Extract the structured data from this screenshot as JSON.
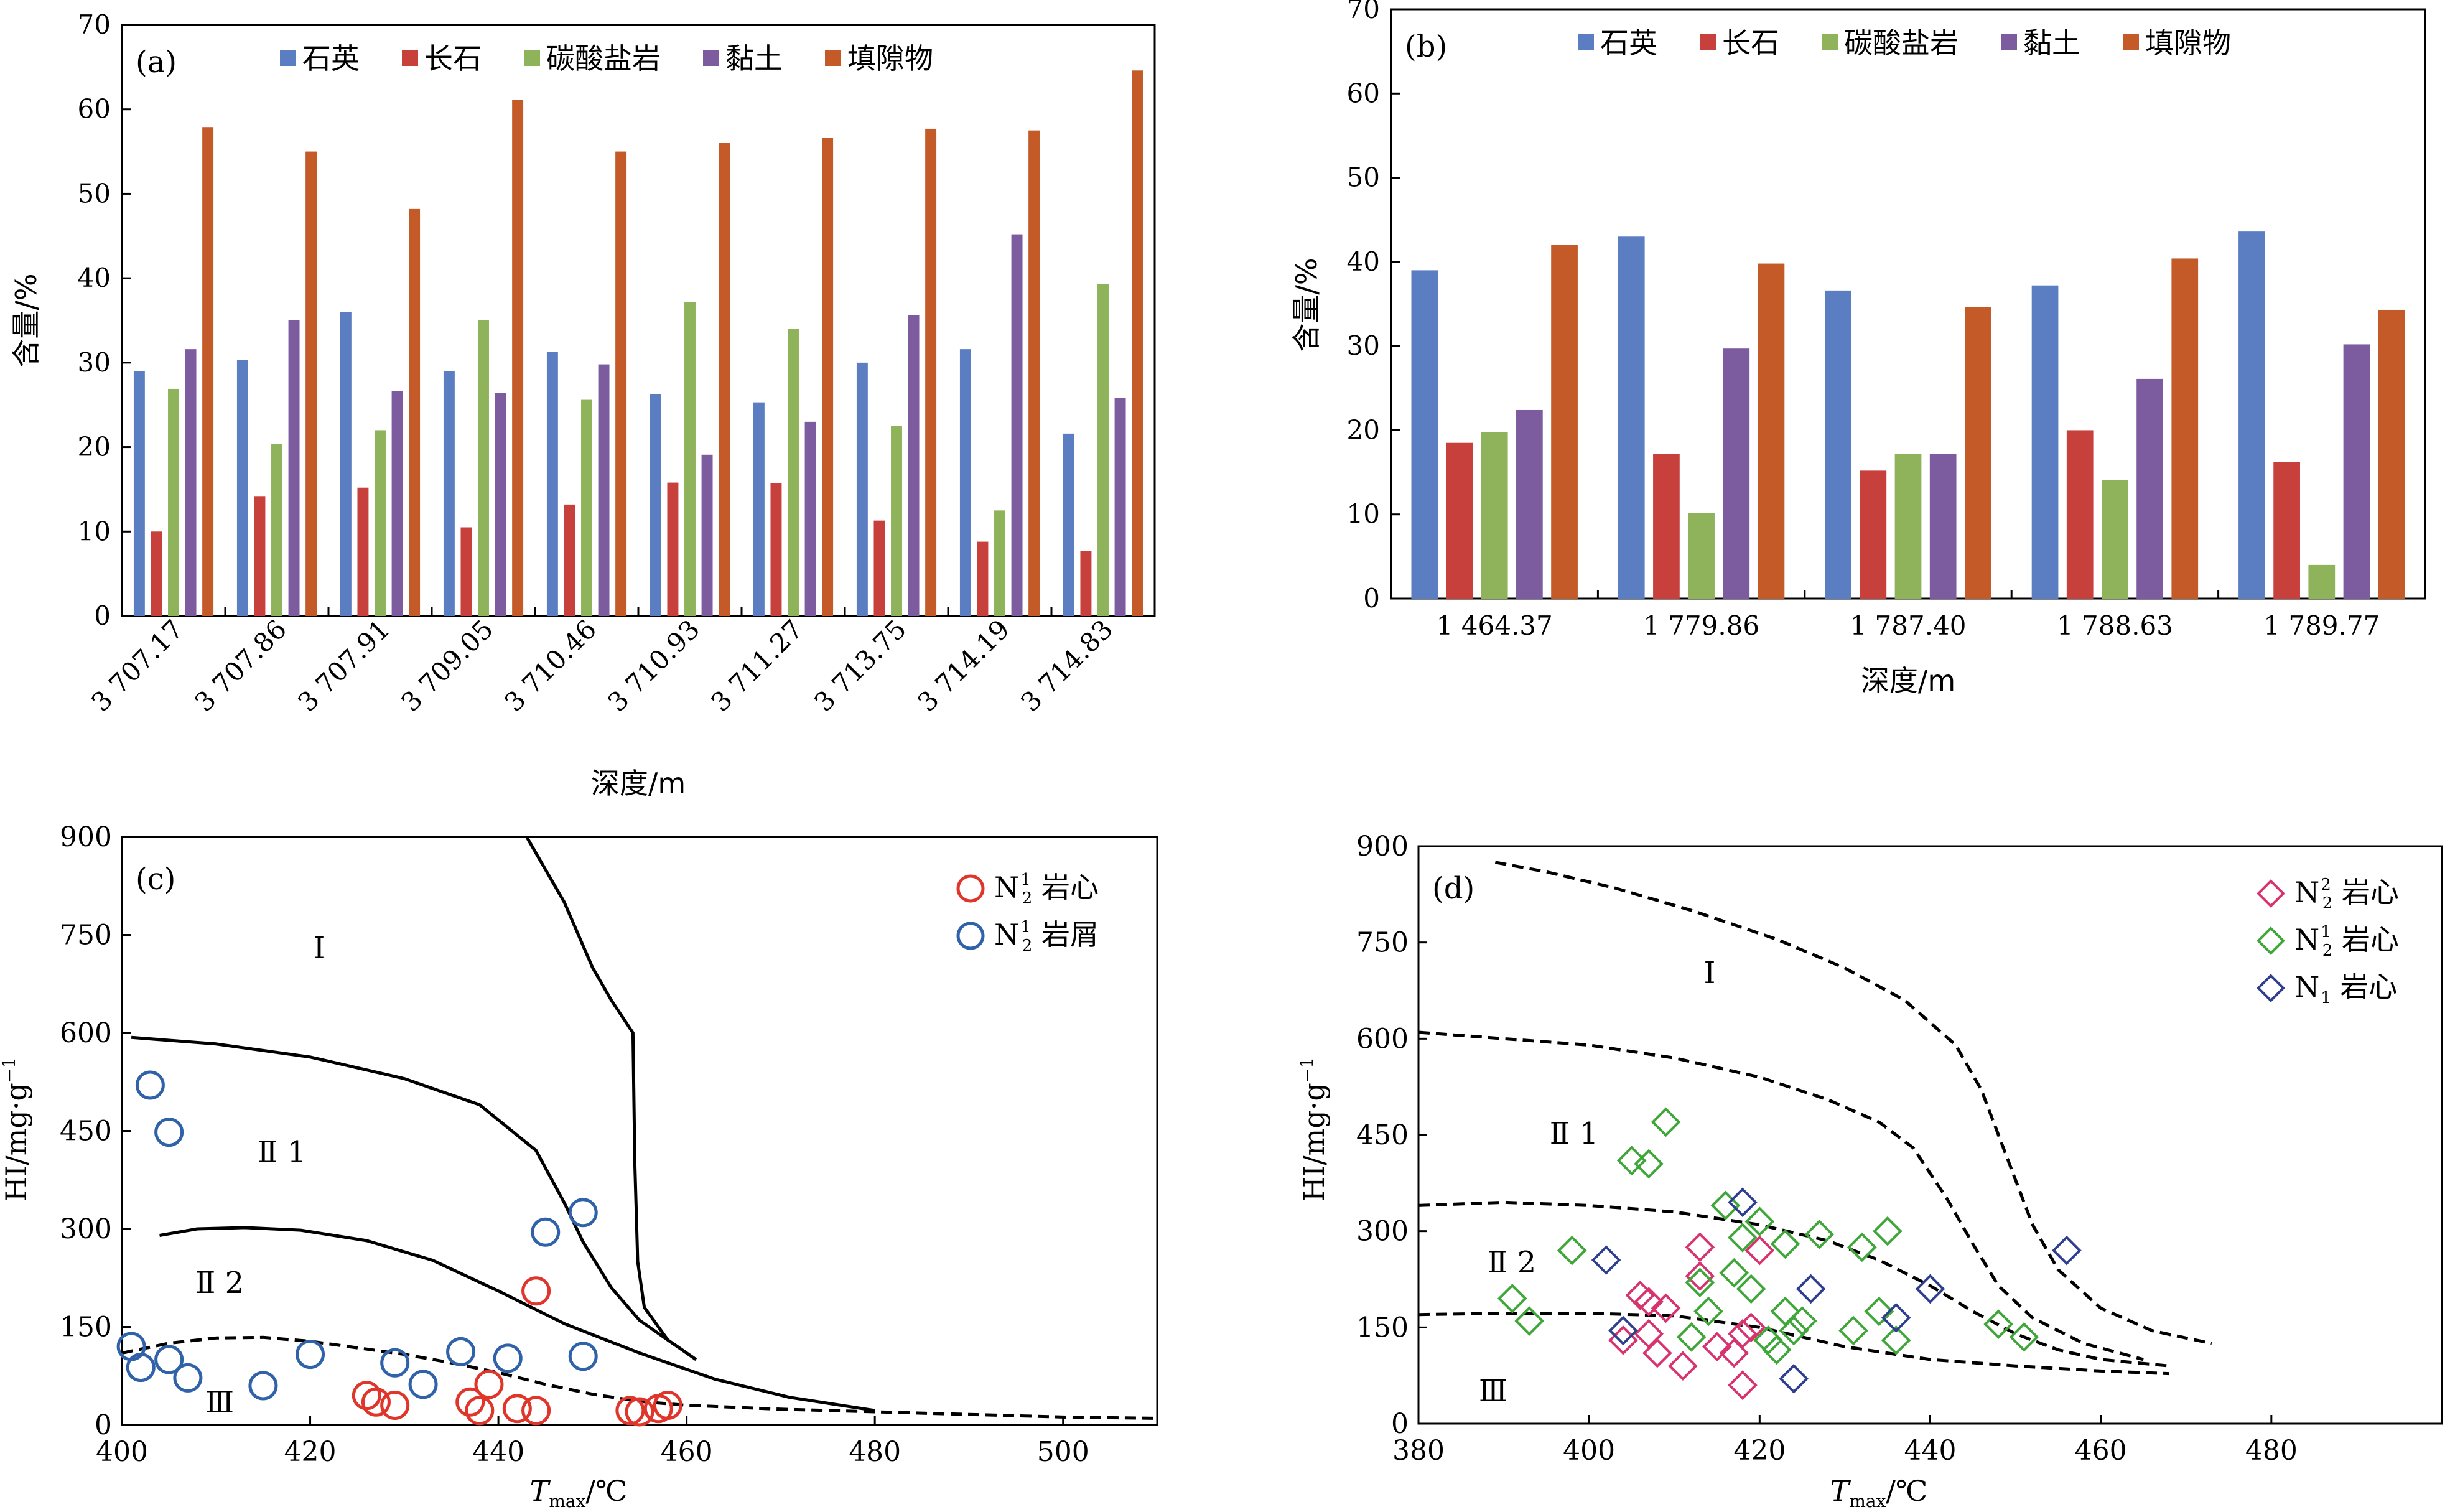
{
  "chart_data": [
    {
      "panel": "(a)",
      "type": "bar",
      "xlabel": "深度/m",
      "ylabel": "含量/%",
      "ylim": [
        0,
        70
      ],
      "yticks": [
        0,
        10,
        20,
        30,
        40,
        50,
        60,
        70
      ],
      "categories": [
        "3 707.17",
        "3 707.86",
        "3 707.91",
        "3 709.05",
        "3 710.46",
        "3 710.93",
        "3 711.27",
        "3 713.75",
        "3 714.19",
        "3 714.83"
      ],
      "series": [
        {
          "name": "石英",
          "color": "#5b7ec2",
          "values": [
            29.0,
            30.3,
            36.0,
            29.0,
            31.3,
            26.3,
            25.3,
            30.0,
            31.6,
            21.6
          ]
        },
        {
          "name": "长石",
          "color": "#c8403c",
          "values": [
            10.0,
            14.2,
            15.2,
            10.5,
            13.2,
            15.8,
            15.7,
            11.3,
            8.8,
            7.7
          ]
        },
        {
          "name": "碳酸盐岩",
          "color": "#8fb35a",
          "values": [
            26.9,
            20.4,
            22.0,
            35.0,
            25.6,
            37.2,
            34.0,
            22.5,
            12.5,
            39.3
          ]
        },
        {
          "name": "黏土",
          "color": "#7c5c9f",
          "values": [
            31.6,
            35.0,
            26.6,
            26.4,
            29.8,
            19.1,
            23.0,
            35.6,
            45.2,
            25.8
          ]
        },
        {
          "name": "填隙物",
          "color": "#c45a28",
          "values": [
            57.9,
            55.0,
            48.2,
            61.1,
            55.0,
            56.0,
            56.6,
            57.7,
            57.5,
            64.6
          ]
        }
      ],
      "legend_position": "top"
    },
    {
      "panel": "(b)",
      "type": "bar",
      "xlabel": "深度/m",
      "ylabel": "含量/%",
      "ylim": [
        0,
        70
      ],
      "yticks": [
        0,
        10,
        20,
        30,
        40,
        50,
        60,
        70
      ],
      "categories": [
        "1 464.37",
        "1 779.86",
        "1 787.40",
        "1 788.63",
        "1 789.77"
      ],
      "series": [
        {
          "name": "石英",
          "color": "#5b7ec2",
          "values": [
            39.0,
            43.0,
            36.6,
            37.2,
            43.6
          ]
        },
        {
          "name": "长石",
          "color": "#c8403c",
          "values": [
            18.5,
            17.2,
            15.2,
            20.0,
            16.2
          ]
        },
        {
          "name": "碳酸盐岩",
          "color": "#8fb35a",
          "values": [
            19.8,
            10.2,
            17.2,
            14.1,
            4.0
          ]
        },
        {
          "name": "黏土",
          "color": "#7c5c9f",
          "values": [
            22.4,
            29.7,
            17.2,
            26.1,
            30.2
          ]
        },
        {
          "name": "填隙物",
          "color": "#c45a28",
          "values": [
            42.0,
            39.8,
            34.6,
            40.4,
            34.3
          ]
        }
      ],
      "legend_position": "top"
    },
    {
      "panel": "(c)",
      "type": "scatter",
      "xlabel_italic": "T",
      "xlabel_sub": "max",
      "xlabel_rest": "/℃",
      "ylabel": "HI/mg·g",
      "ylabel_sup": "−1",
      "xlim": [
        400,
        510
      ],
      "ylim": [
        0,
        900
      ],
      "xticks": [
        400,
        420,
        440,
        460,
        480,
        500
      ],
      "yticks": [
        0,
        150,
        300,
        450,
        600,
        750,
        900
      ],
      "zone_labels": [
        "Ⅰ",
        "Ⅱ 1",
        "Ⅱ 2",
        "Ⅲ"
      ],
      "series": [
        {
          "name": "岩心",
          "prefix": "N",
          "sub": "2",
          "sup": "1",
          "color": "#e0352b",
          "points": [
            [
              426,
              45
            ],
            [
              427,
              35
            ],
            [
              429,
              30
            ],
            [
              437,
              35
            ],
            [
              438,
              22
            ],
            [
              439,
              62
            ],
            [
              442,
              25
            ],
            [
              444,
              205
            ],
            [
              444,
              22
            ],
            [
              454,
              22
            ],
            [
              455,
              20
            ],
            [
              457,
              25
            ],
            [
              458,
              30
            ]
          ]
        },
        {
          "name": "岩屑",
          "prefix": "N",
          "sub": "2",
          "sup": "1",
          "color": "#2f62a8",
          "points": [
            [
              401,
              120
            ],
            [
              402,
              88
            ],
            [
              403,
              520
            ],
            [
              405,
              448
            ],
            [
              405,
              100
            ],
            [
              407,
              72
            ],
            [
              415,
              60
            ],
            [
              420,
              108
            ],
            [
              429,
              95
            ],
            [
              432,
              62
            ],
            [
              436,
              112
            ],
            [
              441,
              102
            ],
            [
              445,
              295
            ],
            [
              449,
              325
            ],
            [
              449,
              105
            ]
          ]
        }
      ],
      "boundaries": [
        {
          "style": "solid",
          "points": [
            [
              443,
              900
            ],
            [
              447,
              800
            ],
            [
              450,
              700
            ],
            [
              452,
              650
            ],
            [
              454.3,
              600
            ],
            [
              454.5,
              400
            ],
            [
              454.8,
              250
            ],
            [
              455.5,
              180
            ],
            [
              458,
              130
            ],
            [
              461,
              100
            ]
          ]
        },
        {
          "style": "solid",
          "points": [
            [
              401,
              593
            ],
            [
              410,
              583
            ],
            [
              420,
              563
            ],
            [
              430,
              530
            ],
            [
              438,
              490
            ],
            [
              444,
              420
            ],
            [
              447,
              340
            ],
            [
              449,
              280
            ],
            [
              452,
              210
            ],
            [
              455,
              160
            ],
            [
              458,
              130
            ],
            [
              461,
              100
            ]
          ]
        },
        {
          "style": "solid",
          "points": [
            [
              404,
              290
            ],
            [
              408,
              300
            ],
            [
              413,
              302
            ],
            [
              419,
              298
            ],
            [
              426,
              282
            ],
            [
              433,
              252
            ],
            [
              440,
              205
            ],
            [
              447,
              155
            ],
            [
              455,
              110
            ],
            [
              463,
              70
            ],
            [
              471,
              42
            ],
            [
              480,
              22
            ]
          ]
        },
        {
          "style": "dashed",
          "points": [
            [
              400,
              110
            ],
            [
              405,
              125
            ],
            [
              410,
              133
            ],
            [
              415,
              134
            ],
            [
              420,
              128
            ],
            [
              425,
              118
            ],
            [
              430,
              108
            ],
            [
              435,
              95
            ],
            [
              440,
              80
            ],
            [
              445,
              62
            ],
            [
              450,
              47
            ],
            [
              455,
              36
            ],
            [
              460,
              30
            ],
            [
              470,
              24
            ],
            [
              480,
              20
            ],
            [
              490,
              16
            ],
            [
              500,
              12
            ],
            [
              510,
              10
            ]
          ]
        }
      ],
      "legend_position": "top-right"
    },
    {
      "panel": "(d)",
      "type": "scatter",
      "xlabel_italic": "T",
      "xlabel_sub": "max",
      "xlabel_rest": "/℃",
      "ylabel": "HI/mg·g",
      "ylabel_sup": "−1",
      "xlim": [
        380,
        500
      ],
      "ylim": [
        0,
        900
      ],
      "xticks": [
        380,
        400,
        420,
        440,
        460,
        480
      ],
      "yticks": [
        0,
        150,
        300,
        450,
        600,
        750,
        900
      ],
      "zone_labels": [
        "Ⅰ",
        "Ⅱ 1",
        "Ⅱ 2",
        "Ⅲ"
      ],
      "series": [
        {
          "name": "岩心",
          "prefix": "N",
          "sub": "2",
          "sup": "2",
          "color": "#d6336f",
          "points": [
            [
              404,
              130
            ],
            [
              406,
              200
            ],
            [
              407,
              190
            ],
            [
              407,
              140
            ],
            [
              408,
              110
            ],
            [
              409,
              180
            ],
            [
              411,
              90
            ],
            [
              413,
              275
            ],
            [
              413,
              230
            ],
            [
              415,
              120
            ],
            [
              417,
              110
            ],
            [
              418,
              140
            ],
            [
              418,
              60
            ],
            [
              419,
              150
            ],
            [
              420,
              270
            ]
          ]
        },
        {
          "name": "岩心",
          "prefix": "N",
          "sub": "2",
          "sup": "1",
          "color": "#3fa63a",
          "points": [
            [
              391,
              195
            ],
            [
              393,
              160
            ],
            [
              398,
              270
            ],
            [
              405,
              410
            ],
            [
              407,
              405
            ],
            [
              409,
              470
            ],
            [
              412,
              135
            ],
            [
              413,
              220
            ],
            [
              414,
              175
            ],
            [
              416,
              340
            ],
            [
              417,
              235
            ],
            [
              418,
              290
            ],
            [
              419,
              210
            ],
            [
              420,
              315
            ],
            [
              421,
              130
            ],
            [
              422,
              115
            ],
            [
              423,
              280
            ],
            [
              423,
              175
            ],
            [
              424,
              145
            ],
            [
              425,
              160
            ],
            [
              427,
              295
            ],
            [
              431,
              145
            ],
            [
              432,
              275
            ],
            [
              434,
              175
            ],
            [
              435,
              300
            ],
            [
              436,
              130
            ],
            [
              448,
              155
            ],
            [
              451,
              135
            ]
          ]
        },
        {
          "name": "岩心",
          "prefix": "N",
          "sub": "1",
          "sup": "",
          "color": "#2f3f8f",
          "points": [
            [
              402,
              255
            ],
            [
              404,
              145
            ],
            [
              418,
              345
            ],
            [
              424,
              70
            ],
            [
              426,
              210
            ],
            [
              436,
              165
            ],
            [
              440,
              210
            ],
            [
              456,
              270
            ]
          ]
        }
      ],
      "boundaries": [
        {
          "style": "dashed",
          "points": [
            [
              389,
              875
            ],
            [
              395,
              860
            ],
            [
              403,
              835
            ],
            [
              412,
              800
            ],
            [
              422,
              755
            ],
            [
              430,
              710
            ],
            [
              437,
              660
            ],
            [
              443,
              590
            ],
            [
              446,
              520
            ],
            [
              448,
              450
            ],
            [
              450,
              380
            ],
            [
              452,
              310
            ],
            [
              455,
              240
            ],
            [
              460,
              180
            ],
            [
              466,
              145
            ],
            [
              473,
              125
            ]
          ]
        },
        {
          "style": "dashed",
          "points": [
            [
              380,
              610
            ],
            [
              390,
              600
            ],
            [
              400,
              590
            ],
            [
              410,
              570
            ],
            [
              420,
              540
            ],
            [
              428,
              505
            ],
            [
              434,
              470
            ],
            [
              438,
              430
            ],
            [
              442,
              350
            ],
            [
              445,
              280
            ],
            [
              448,
              215
            ],
            [
              452,
              165
            ],
            [
              458,
              125
            ],
            [
              465,
              100
            ]
          ]
        },
        {
          "style": "dashed",
          "points": [
            [
              380,
              340
            ],
            [
              390,
              345
            ],
            [
              400,
              340
            ],
            [
              410,
              330
            ],
            [
              420,
              310
            ],
            [
              428,
              285
            ],
            [
              434,
              255
            ],
            [
              440,
              215
            ],
            [
              445,
              175
            ],
            [
              450,
              140
            ],
            [
              455,
              115
            ],
            [
              460,
              100
            ],
            [
              468,
              90
            ]
          ]
        },
        {
          "style": "dashed",
          "points": [
            [
              380,
              170
            ],
            [
              390,
              172
            ],
            [
              400,
              172
            ],
            [
              410,
              168
            ],
            [
              420,
              150
            ],
            [
              430,
              120
            ],
            [
              440,
              100
            ],
            [
              450,
              90
            ],
            [
              460,
              82
            ],
            [
              468,
              78
            ]
          ]
        }
      ],
      "legend_position": "top-right"
    }
  ]
}
